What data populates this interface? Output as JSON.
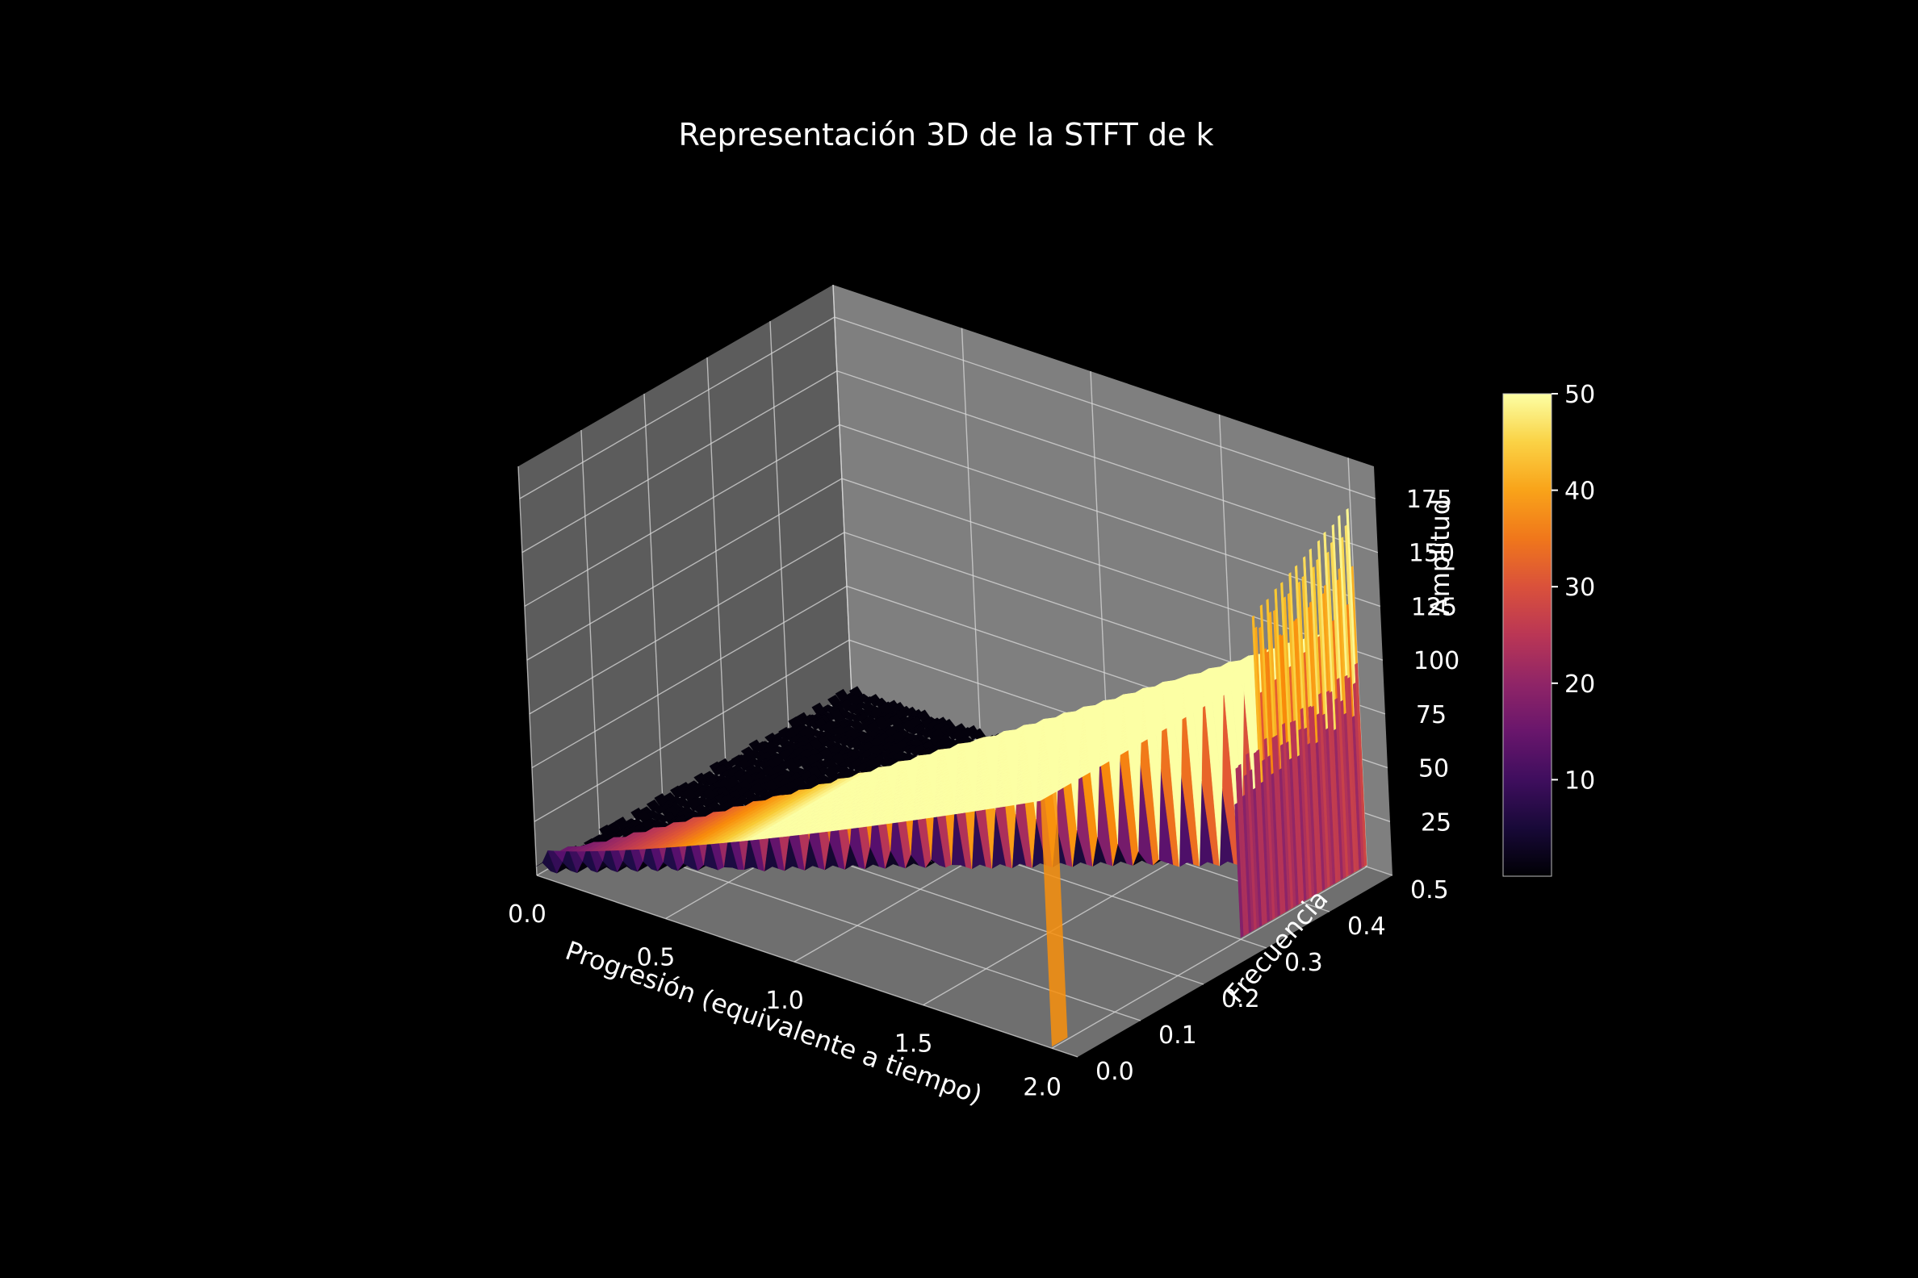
{
  "chart_data": {
    "type": "surface3d",
    "title": "Representación 3D de la STFT de k",
    "xlabel": "Progresión (equivalente a tiempo)",
    "ylabel": "Frecuencia",
    "zlabel": "Amplitud",
    "xlim": [
      0.0,
      2.1
    ],
    "ylim": [
      0.0,
      0.5
    ],
    "zlim": [
      0,
      190
    ],
    "xticks": [
      "0.0",
      "0.5",
      "1.0",
      "1.5",
      "2.0"
    ],
    "yticks": [
      "0.0",
      "0.1",
      "0.2",
      "0.3",
      "0.4",
      "0.5"
    ],
    "zticks": [
      "25",
      "50",
      "75",
      "100",
      "125",
      "150",
      "175"
    ],
    "colormap": "inferno",
    "colorbar": {
      "range": [
        0,
        50
      ],
      "ticks": [
        "10",
        "20",
        "30",
        "40",
        "50"
      ]
    },
    "components": [
      {
        "description_key": "chirp",
        "x_start": 0.0,
        "x_end": 2.0,
        "f_start": 0.0,
        "f_end": 0.5,
        "peak_start": 12,
        "peak_end": 115
      },
      {
        "description_key": "band_low",
        "x": 2.0,
        "f_range": [
          0.02,
          0.1
        ],
        "peak": 30
      },
      {
        "description_key": "ridge_mid",
        "x": 2.0,
        "f_range": [
          0.3,
          0.5
        ],
        "peak": 95
      },
      {
        "description_key": "ridge_high",
        "x": 2.0,
        "f_range": [
          0.34,
          0.5
        ],
        "peak": 170
      }
    ],
    "background_color": "#000000",
    "pane_color": "#7a7a7a",
    "grid": true
  }
}
